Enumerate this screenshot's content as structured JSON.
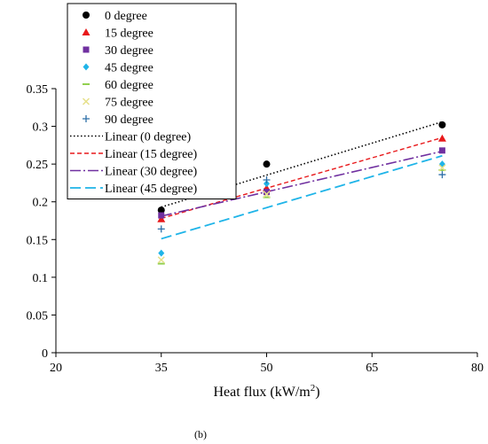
{
  "chart_data": {
    "type": "scatter",
    "title": "",
    "xlabel": "Heat flux (kW/m",
    "xlabel_sup": "2",
    "xlabel_end": ")",
    "ylabel": "",
    "xlim": [
      20,
      80
    ],
    "ylim": [
      0,
      0.35
    ],
    "xticks": [
      20,
      35,
      50,
      65,
      80
    ],
    "xtick_labels": [
      "20",
      "35",
      "50",
      "65",
      "80"
    ],
    "yticks": [
      0,
      0.05,
      0.1,
      0.15,
      0.2,
      0.25,
      0.3,
      0.35
    ],
    "ytick_labels": [
      "0",
      "0.05",
      "0.1",
      "0.15",
      "0.2",
      "0.25",
      "0.3",
      "0.35"
    ],
    "grid": false,
    "legend_position": "top-left",
    "x": [
      35,
      50,
      75
    ],
    "series": [
      {
        "name": "0 degree",
        "marker": "circle",
        "color": "#000000",
        "values": [
          0.189,
          0.25,
          0.302
        ]
      },
      {
        "name": "15 degree",
        "marker": "triangle",
        "color": "#e8191b",
        "values": [
          0.177,
          0.218,
          0.284
        ]
      },
      {
        "name": "30 degree",
        "marker": "square",
        "color": "#7030a0",
        "values": [
          0.182,
          0.213,
          0.268
        ]
      },
      {
        "name": "45 degree",
        "marker": "diamond",
        "color": "#1fb4e8",
        "values": [
          0.132,
          0.224,
          0.25
        ]
      },
      {
        "name": "60 degree",
        "marker": "dash",
        "color": "#92d050",
        "values": [
          0.118,
          0.206,
          0.242
        ]
      },
      {
        "name": "75 degree",
        "marker": "x",
        "color": "#e6e08a",
        "values": [
          0.123,
          0.21,
          0.245
        ]
      },
      {
        "name": "90 degree",
        "marker": "plus",
        "color": "#2e6fa8",
        "values": [
          0.164,
          0.229,
          0.236
        ]
      }
    ],
    "trendlines": [
      {
        "name": "Linear (0 degree)",
        "color": "#000000",
        "dash": "1.5 2.5",
        "width": 1.6,
        "x_range": [
          35,
          75
        ],
        "y_range": [
          0.193,
          0.306
        ]
      },
      {
        "name": "Linear (15 degree)",
        "color": "#e8191b",
        "dash": "5 3",
        "width": 1.4,
        "x_range": [
          35,
          75
        ],
        "y_range": [
          0.178,
          0.285
        ]
      },
      {
        "name": "Linear (30 degree)",
        "color": "#7030a0",
        "dash": "12 3 2 3",
        "width": 1.6,
        "x_range": [
          35,
          75
        ],
        "y_range": [
          0.181,
          0.267
        ]
      },
      {
        "name": "Linear (45 degree)",
        "color": "#1fb4e8",
        "dash": "12 5",
        "width": 1.8,
        "x_range": [
          35,
          75
        ],
        "y_range": [
          0.151,
          0.261
        ]
      }
    ],
    "caption": "(b)"
  }
}
